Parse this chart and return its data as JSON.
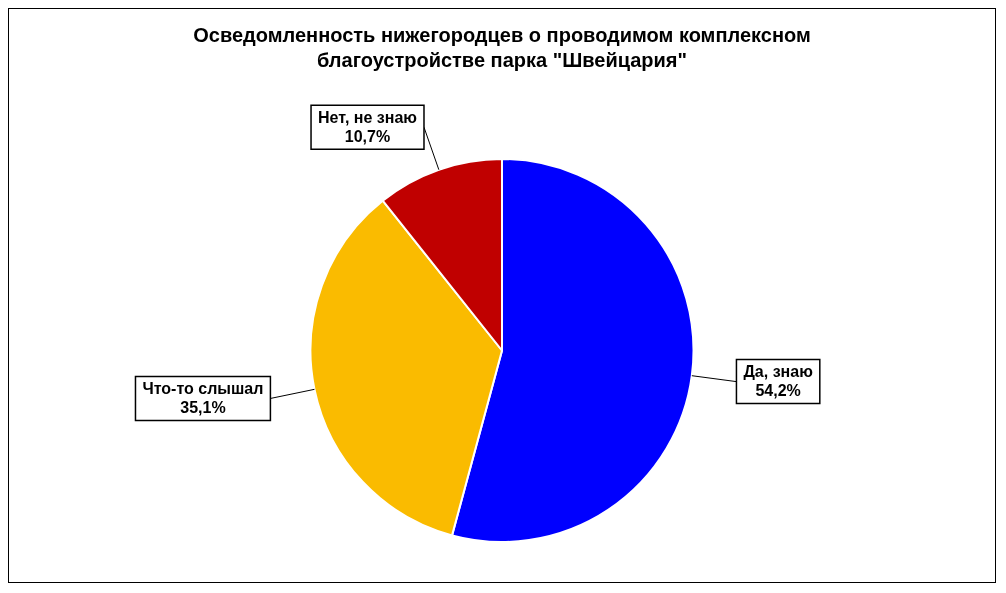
{
  "chart_data": {
    "type": "pie",
    "title": "Осведомленность нижегородцев о проводимом комплексном благоустройстве парка \"Швейцария\"",
    "categories": [
      "Да, знаю",
      "Что-то слышал",
      "Нет, не знаю"
    ],
    "values": [
      54.2,
      35.1,
      10.7
    ],
    "colors": [
      "#0000ff",
      "#fabb00",
      "#c00000"
    ],
    "value_labels": [
      "54,2%",
      "35,1%",
      "10,7%"
    ],
    "legend": false
  }
}
